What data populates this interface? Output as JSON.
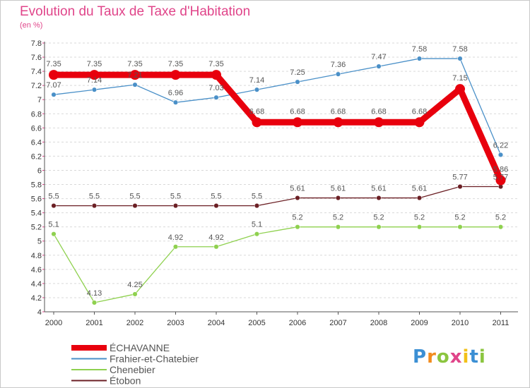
{
  "chart_data": {
    "type": "line",
    "title": "Evolution du Taux de Taxe d'Habitation",
    "subtitle": "(en %)",
    "x": [
      "2000",
      "2001",
      "2002",
      "2003",
      "2004",
      "2005",
      "2006",
      "2007",
      "2008",
      "2009",
      "2010",
      "2011"
    ],
    "ylim": [
      4,
      7.8
    ],
    "yticks": [
      "4",
      "4.2",
      "4.4",
      "4.6",
      "4.8",
      "5",
      "5.2",
      "5.4",
      "5.6",
      "5.8",
      "6",
      "6.2",
      "6.4",
      "6.6",
      "6.8",
      "7",
      "7.2",
      "7.4",
      "7.6",
      "7.8"
    ],
    "grid": "horizontal",
    "legend": "bottom-left",
    "series": [
      {
        "name": "ÉCHAVANNE",
        "color": "#e8000d",
        "values": [
          7.35,
          7.35,
          7.35,
          7.35,
          7.35,
          6.68,
          6.68,
          6.68,
          6.68,
          6.68,
          7.15,
          5.86
        ],
        "labels": [
          "7.35",
          "7.35",
          "7.35",
          "7.35",
          "7.35",
          "6.68",
          "6.68",
          "6.68",
          "6.68",
          "6.68",
          "7.15",
          "5.86"
        ]
      },
      {
        "name": "Frahier-et-Chatebier",
        "color": "#4a90c8",
        "values": [
          7.07,
          7.14,
          7.21,
          6.96,
          7.03,
          7.14,
          7.25,
          7.36,
          7.47,
          7.58,
          7.58,
          6.22
        ],
        "labels": [
          "7.07",
          "7.14",
          "7.21",
          "6.96",
          "7.03",
          "7.14",
          "7.25",
          "7.36",
          "7.47",
          "7.58",
          "7.58",
          "6.22"
        ]
      },
      {
        "name": "Chenebier",
        "color": "#8fd14f",
        "values": [
          5.1,
          4.13,
          4.25,
          4.92,
          4.92,
          5.1,
          5.2,
          5.2,
          5.2,
          5.2,
          5.2,
          5.2
        ],
        "labels": [
          "5.1",
          "4.13",
          "4.25",
          "4.92",
          "4.92",
          "5.1",
          "5.2",
          "5.2",
          "5.2",
          "5.2",
          "5.2",
          "5.2"
        ]
      },
      {
        "name": "Étobon",
        "color": "#6b1f24",
        "values": [
          5.5,
          5.5,
          5.5,
          5.5,
          5.5,
          5.5,
          5.61,
          5.61,
          5.61,
          5.61,
          5.77,
          5.77
        ],
        "labels": [
          "5.5",
          "5.5",
          "5.5",
          "5.5",
          "5.5",
          "5.5",
          "5.61",
          "5.61",
          "5.61",
          "5.61",
          "5.77",
          "5.77"
        ]
      }
    ]
  },
  "logo": {
    "letters": [
      {
        "ch": "P",
        "color": "#3b8fd4"
      },
      {
        "ch": "r",
        "color": "#f28c1e"
      },
      {
        "ch": "o",
        "color": "#8bc53f"
      },
      {
        "ch": "x",
        "color": "#e0458a"
      },
      {
        "ch": "i",
        "color": "#f2c018"
      },
      {
        "ch": "t",
        "color": "#3b8fd4"
      },
      {
        "ch": "i",
        "color": "#8bc53f"
      }
    ]
  }
}
